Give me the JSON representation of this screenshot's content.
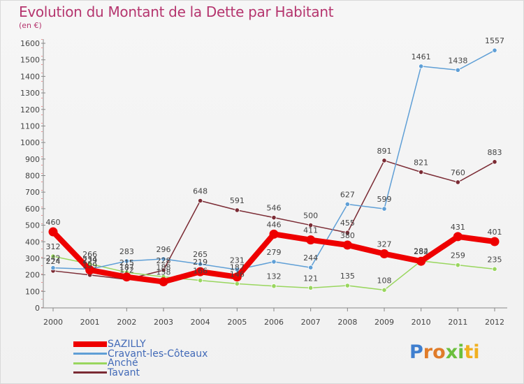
{
  "chart_data": {
    "type": "line",
    "title": "Evolution du Montant de la Dette par Habitant",
    "subtitle": "(en €)",
    "x": [
      "2000",
      "2001",
      "2002",
      "2003",
      "2004",
      "2005",
      "2006",
      "2007",
      "2008",
      "2009",
      "2010",
      "2011",
      "2012"
    ],
    "ylim": [
      0,
      1600
    ],
    "yticks": [
      0,
      100,
      200,
      300,
      400,
      500,
      600,
      700,
      800,
      900,
      1000,
      1100,
      1200,
      1300,
      1400,
      1500,
      1600
    ],
    "grid": false,
    "legend_position": "bottom-left",
    "series": [
      {
        "name": "Tavant",
        "color": "#7b2b34",
        "values": [
          224,
          199,
          172,
          228,
          648,
          591,
          546,
          500,
          455,
          891,
          821,
          760,
          883
        ]
      },
      {
        "name": "Anché",
        "color": "#99d65e",
        "values": [
          312,
          266,
          215,
          188,
          166,
          146,
          132,
          121,
          135,
          108,
          284,
          259,
          235
        ]
      },
      {
        "name": "Cravant-les-Côteaux",
        "color": "#5f9fd6",
        "values": [
          242,
          234,
          283,
          296,
          265,
          231,
          279,
          244,
          627,
          599,
          1461,
          1438,
          1557
        ]
      },
      {
        "name": "SAZILLY",
        "color": "#ee0000",
        "values": [
          460,
          229,
          187,
          158,
          219,
          187,
          446,
          411,
          380,
          327,
          282,
          431,
          401
        ]
      }
    ]
  },
  "legend": [
    {
      "name": "SAZILLY",
      "color": "#ee0000"
    },
    {
      "name": "Cravant-les-Côteaux",
      "color": "#5f9fd6"
    },
    {
      "name": "Anché",
      "color": "#99d65e"
    },
    {
      "name": "Tavant",
      "color": "#7b2b34"
    }
  ],
  "logo": {
    "letters": [
      "P",
      "r",
      "o",
      "x",
      "i",
      "t",
      "i"
    ],
    "colors": [
      "#3f7fcf",
      "#e07c2a",
      "#e07c2a",
      "#6bbf3d",
      "#6bbf3d",
      "#f0b020",
      "#f0b020"
    ]
  }
}
